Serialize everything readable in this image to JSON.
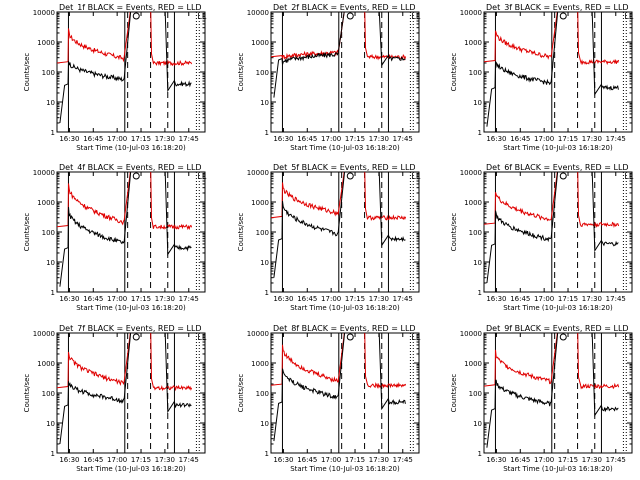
{
  "chart_data": {
    "type": "line",
    "yscale": "log",
    "ylim": [
      1,
      10000
    ],
    "xlim_hours": [
      16.37,
      17.92
    ],
    "x_tick_hours": [
      16.5,
      16.75,
      17.0,
      17.25,
      17.5,
      17.75
    ],
    "x_tick_labels": [
      "16:30",
      "16:45",
      "17:00",
      "17:15",
      "17:30",
      "17:45"
    ],
    "y_tick_values": [
      1,
      10,
      100,
      1000,
      10000
    ],
    "y_tick_labels": [
      "1",
      "10",
      "100",
      "1000",
      "10000"
    ],
    "ylabel": "Counts/sec",
    "xlabel": "Start Time (10-Jul-03 16:18:20)",
    "series_colors": {
      "events": "#000000",
      "lld": "#e00000"
    },
    "markers": {
      "solid_hours": [
        16.49,
        17.08,
        17.6
      ],
      "dashed_hours": [
        17.11,
        17.35,
        17.53
      ],
      "dotted_hours": [
        17.83,
        17.86
      ],
      "corner_label": "LL",
      "circle_hour": 17.2
    },
    "panels": [
      {
        "id": "1f",
        "title": "Det_1f BLACK = Events, RED = LLD",
        "events_start": 250,
        "lld_start": 2500,
        "events_end": 40,
        "lld_end": 200
      },
      {
        "id": "2f",
        "title": "Det_2f BLACK = Events, RED = LLD",
        "events_start": 200,
        "lld_start": 300,
        "events_end": 280,
        "lld_end": 320
      },
      {
        "id": "3f",
        "title": "Det_3f BLACK = Events, RED = LLD",
        "events_start": 250,
        "lld_start": 2500,
        "events_end": 30,
        "lld_end": 220
      },
      {
        "id": "4f",
        "title": "Det_4f BLACK = Events, RED = LLD",
        "events_start": 600,
        "lld_start": 4000,
        "events_end": 30,
        "lld_end": 150
      },
      {
        "id": "5f",
        "title": "Det_5f BLACK = Events, RED = LLD",
        "events_start": 1000,
        "lld_start": 4000,
        "events_end": 60,
        "lld_end": 300
      },
      {
        "id": "6f",
        "title": "Det_6f BLACK = Events, RED = LLD",
        "events_start": 500,
        "lld_start": 2500,
        "events_end": 40,
        "lld_end": 180
      },
      {
        "id": "7f",
        "title": "Det_7f BLACK = Events, RED = LLD",
        "events_start": 250,
        "lld_start": 2500,
        "events_end": 40,
        "lld_end": 150
      },
      {
        "id": "8f",
        "title": "Det_8f BLACK = Events, RED = LLD",
        "events_start": 700,
        "lld_start": 4000,
        "events_end": 50,
        "lld_end": 180
      },
      {
        "id": "9f",
        "title": "Det_9f BLACK = Events, RED = LLD",
        "events_start": 300,
        "lld_start": 2500,
        "events_end": 30,
        "lld_end": 170
      }
    ]
  }
}
